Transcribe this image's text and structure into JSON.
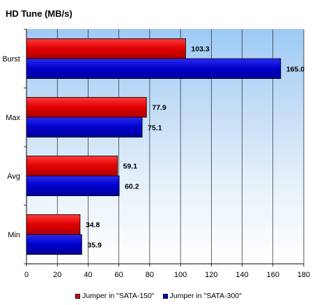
{
  "chart_data": {
    "type": "bar",
    "orientation": "horizontal",
    "title": "HD Tune  (MB/s)",
    "categories": [
      "Burst",
      "Max",
      "Avg",
      "Min"
    ],
    "series": [
      {
        "name": "Jumper in \"SATA-150\"",
        "color": "#e00000",
        "values": [
          103.3,
          77.9,
          59.1,
          34.8
        ],
        "labels": [
          "103.3",
          "77.9",
          "59.1",
          "34.8"
        ]
      },
      {
        "name": "Jumper in \"SATA-300\"",
        "color": "#0000cc",
        "values": [
          165.0,
          75.1,
          60.2,
          35.9
        ],
        "labels": [
          "165.0",
          "75.1",
          "60.2",
          "35.9"
        ]
      }
    ],
    "xlim": [
      0,
      180
    ],
    "xticks": [
      0,
      20,
      40,
      60,
      80,
      100,
      120,
      140,
      160,
      180
    ],
    "xtick_labels": [
      "0",
      "20",
      "40",
      "60",
      "80",
      "100",
      "120",
      "140",
      "160",
      "180"
    ],
    "grid": "vertical",
    "legend_position": "bottom",
    "background": "gradient-light-to-sky-blue"
  }
}
